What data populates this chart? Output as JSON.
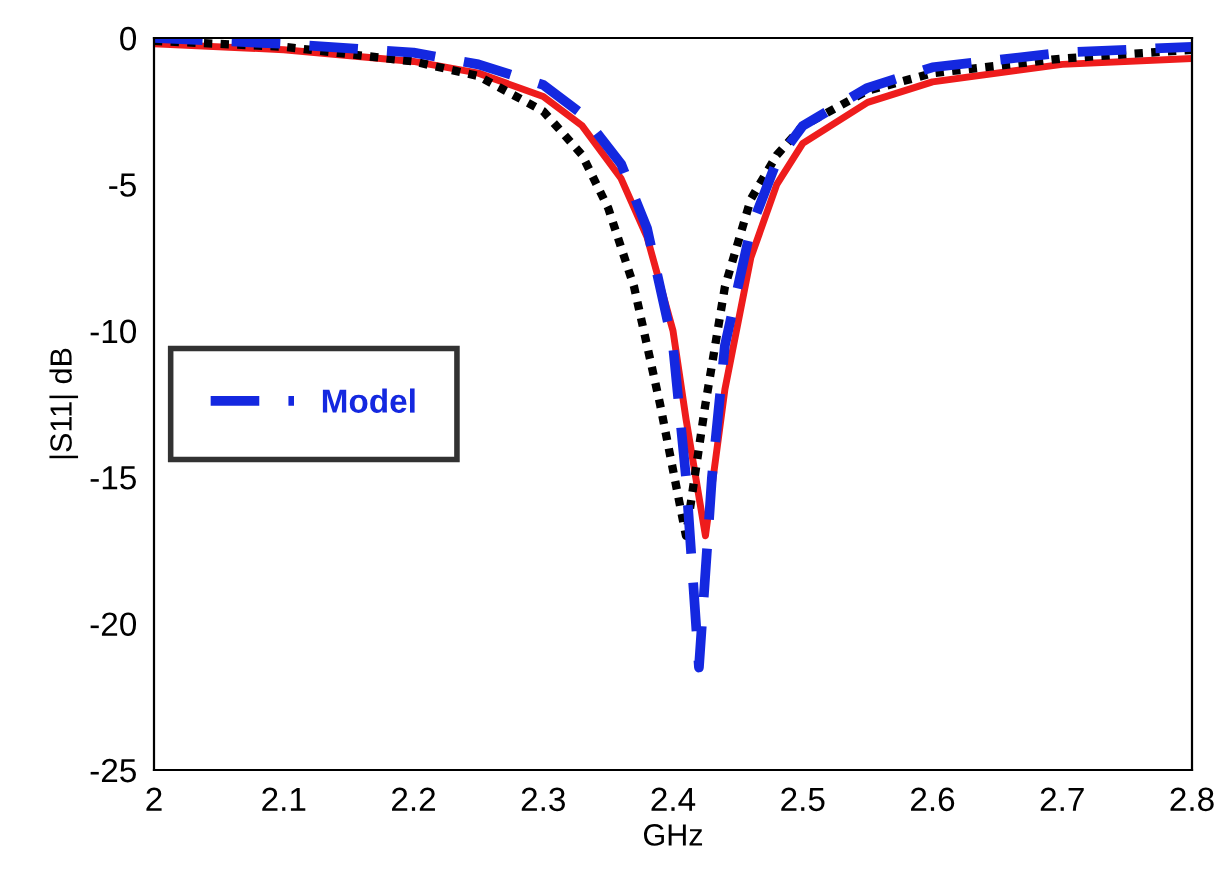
{
  "chart_data": {
    "type": "line",
    "xlabel": "GHz",
    "ylabel": "|S11| dB",
    "xlim": [
      2,
      2.8
    ],
    "ylim": [
      -25,
      0
    ],
    "xticks": [
      2,
      2.1,
      2.2,
      2.3,
      2.4,
      2.5,
      2.6,
      2.7,
      2.8
    ],
    "yticks": [
      -25,
      -20,
      -15,
      -10,
      -5,
      0
    ],
    "grid": false,
    "legend": "left",
    "series": [
      {
        "color": "#ee1c1c",
        "line_style": "solid",
        "x": [
          2.0,
          2.1,
          2.2,
          2.25,
          2.3,
          2.33,
          2.36,
          2.38,
          2.4,
          2.41,
          2.425,
          2.44,
          2.46,
          2.48,
          2.5,
          2.55,
          2.6,
          2.7,
          2.8
        ],
        "values": [
          -0.2,
          -0.4,
          -0.8,
          -1.2,
          -2.0,
          -3.0,
          -4.8,
          -6.8,
          -10,
          -13,
          -17,
          -12,
          -7.5,
          -5.0,
          -3.6,
          -2.2,
          -1.5,
          -0.9,
          -0.7
        ]
      },
      {
        "color": "#000000",
        "line_style": "dotted",
        "x": [
          2.0,
          2.1,
          2.2,
          2.25,
          2.3,
          2.33,
          2.35,
          2.37,
          2.39,
          2.41,
          2.425,
          2.44,
          2.46,
          2.48,
          2.5,
          2.55,
          2.6,
          2.7,
          2.8
        ],
        "values": [
          -0.1,
          -0.3,
          -0.8,
          -1.3,
          -2.5,
          -4.0,
          -5.8,
          -8.5,
          -12.5,
          -17,
          -12.5,
          -8.5,
          -5.5,
          -4.0,
          -3.0,
          -1.8,
          -1.2,
          -0.7,
          -0.4
        ]
      },
      {
        "name": "Model",
        "color": "#1428e0",
        "line_style": "dashed",
        "x": [
          2.0,
          2.1,
          2.2,
          2.25,
          2.3,
          2.33,
          2.36,
          2.38,
          2.4,
          2.41,
          2.42,
          2.43,
          2.44,
          2.46,
          2.48,
          2.5,
          2.55,
          2.6,
          2.7,
          2.8
        ],
        "values": [
          0,
          -0.2,
          -0.5,
          -0.9,
          -1.6,
          -2.6,
          -4.3,
          -6.5,
          -10.5,
          -15,
          -21.5,
          -15,
          -10.5,
          -6.5,
          -4.2,
          -3.0,
          -1.7,
          -1.0,
          -0.5,
          -0.3
        ]
      }
    ]
  }
}
